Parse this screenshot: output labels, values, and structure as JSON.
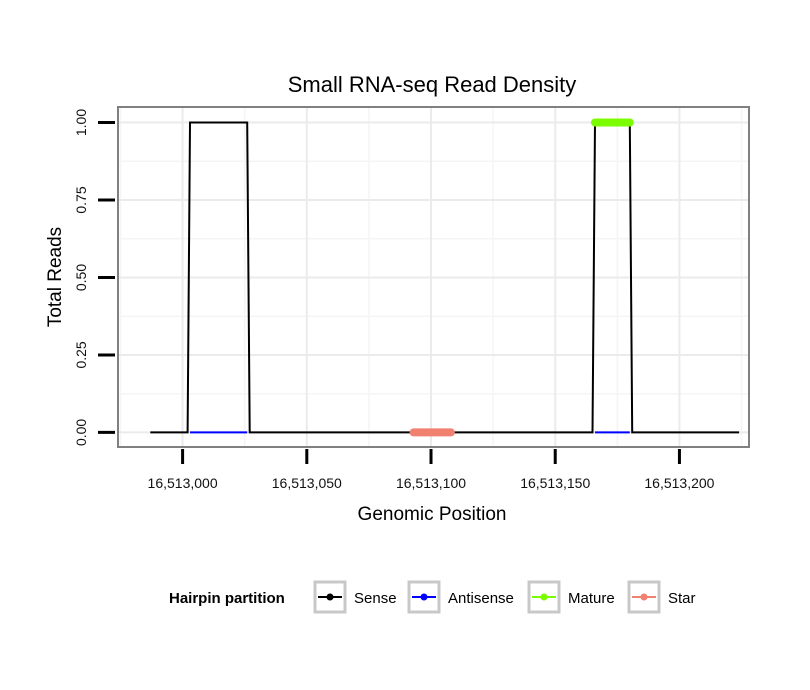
{
  "chart_data": {
    "type": "line",
    "title": "Small RNA-seq Read Density",
    "xlabel": "Genomic Position",
    "ylabel": "Total Reads",
    "xlim": [
      16512974,
      16513228
    ],
    "ylim": [
      -0.047,
      1.05
    ],
    "x_ticks": [
      16513000,
      16513050,
      16513100,
      16513150,
      16513200
    ],
    "x_tick_labels": [
      "16,513,000",
      "16,513,050",
      "16,513,100",
      "16,513,150",
      "16,513,200"
    ],
    "y_ticks": [
      0,
      0.25,
      0.5,
      0.75,
      1.0
    ],
    "y_tick_labels": [
      "0.00",
      "0.25",
      "0.50",
      "0.75",
      "1.00"
    ],
    "grid": true,
    "legend": {
      "title": "Hairpin partition",
      "position": "bottom",
      "entries": [
        {
          "name": "Sense",
          "color": "#000000"
        },
        {
          "name": "Antisense",
          "color": "#0000ff"
        },
        {
          "name": "Mature",
          "color": "#7cfc00"
        },
        {
          "name": "Star",
          "color": "#f08070"
        }
      ]
    },
    "series": [
      {
        "name": "Sense",
        "color": "#000000",
        "x": [
          16512987,
          16513002,
          16513003,
          16513026,
          16513027,
          16513165,
          16513166,
          16513180,
          16513181,
          16513224
        ],
        "y": [
          0,
          0,
          1,
          1,
          0,
          0,
          1,
          1,
          0,
          0
        ]
      },
      {
        "name": "Antisense",
        "color": "#0000ff",
        "x": [
          16513003,
          16513026
        ],
        "y": [
          0,
          0
        ]
      },
      {
        "name": "Antisense",
        "color": "#0000ff",
        "x": [
          16513166,
          16513180
        ],
        "y": [
          0,
          0
        ]
      },
      {
        "name": "Mature",
        "color": "#7cfc00",
        "x": [
          16513166,
          16513180
        ],
        "y": [
          1,
          1
        ]
      },
      {
        "name": "Star",
        "color": "#f08070",
        "x": [
          16513093,
          16513108
        ],
        "y": [
          0,
          0
        ]
      }
    ]
  }
}
